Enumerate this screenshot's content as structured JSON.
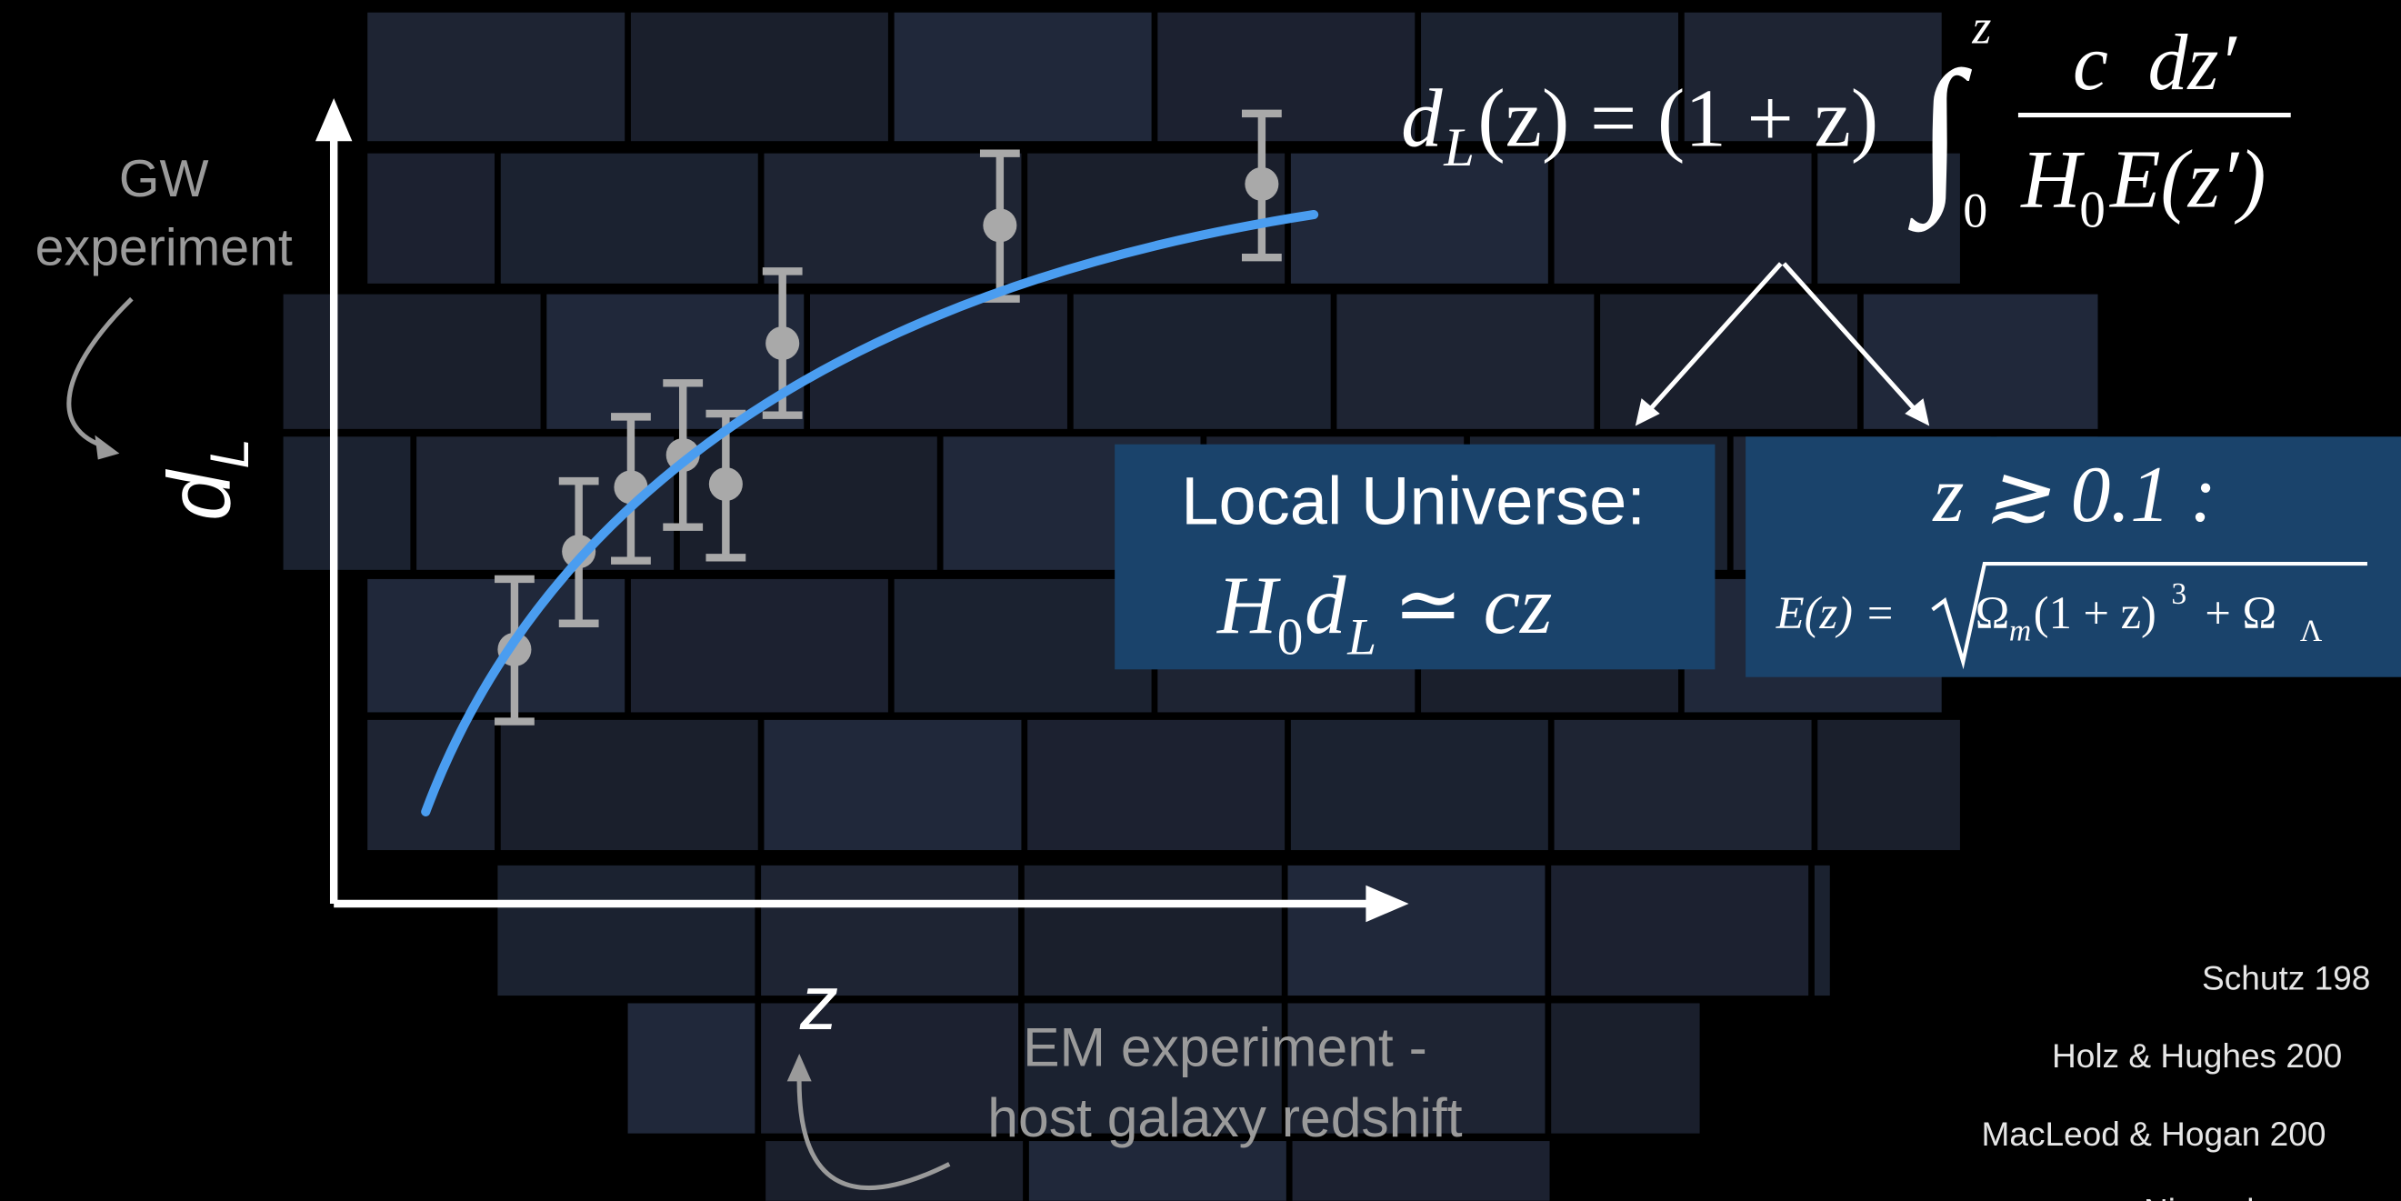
{
  "gw_label": [
    "GW",
    "experiment"
  ],
  "y_axis_label": {
    "main": "d",
    "sub": "L"
  },
  "x_axis_label": "z",
  "em_label": [
    "EM experiment -",
    "host galaxy redshift"
  ],
  "formula": {
    "lhs": "d",
    "lhs_sub": "L",
    "middle": "(z) = (1 + z)",
    "integral": "∫",
    "lower": "0",
    "upper": "z",
    "numerator": "c  dz′",
    "den_h": "H",
    "den_sub": "0",
    "den_rest": "E(z′)"
  },
  "local_box": {
    "title": "Local Universe:",
    "h": "H",
    "h_sub": "0",
    "d": "d",
    "d_sub": "L",
    "rest": "≃ cz"
  },
  "high_z_box": {
    "condition": "z ≳ 0.1 :",
    "lhs": "E(z) =",
    "omega_m": "Ω",
    "m_sub": "m",
    "paren": "(1 + z)",
    "cube": "3",
    "plus": "+ Ω",
    "lambda_sub": "Λ"
  },
  "references": [
    "Schutz 198",
    "Holz & Hughes 200",
    "MacLeod & Hogan 200",
    "Nissanke"
  ]
}
